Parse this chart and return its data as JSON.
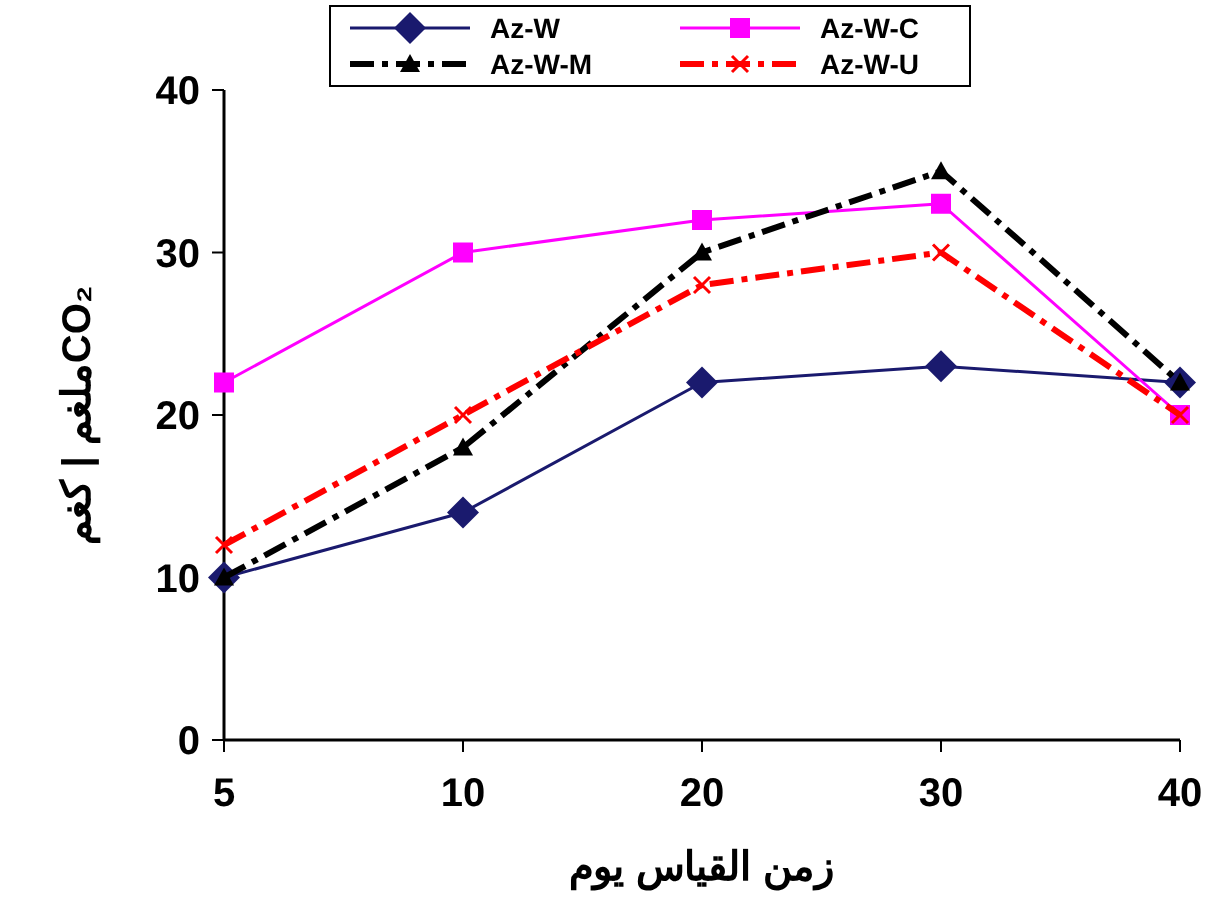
{
  "chart_data": {
    "type": "line",
    "xlabel": "زمن القياس يوم",
    "ylabel": "CO₂ملغم | كغم",
    "categories": [
      "5",
      "10",
      "20",
      "30",
      "40"
    ],
    "ylim": [
      0,
      40
    ],
    "yticks": [
      0,
      10,
      20,
      30,
      40
    ],
    "grid": false,
    "legend": "top",
    "series": [
      {
        "name": "Az-W",
        "color": "#1a1a6e",
        "values": [
          10,
          14,
          22,
          23,
          22
        ],
        "marker": "diamond",
        "line_style": "solid"
      },
      {
        "name": "Az-W-C",
        "color": "#ff00ff",
        "values": [
          22,
          30,
          32,
          33,
          20
        ],
        "marker": "square",
        "line_style": "solid"
      },
      {
        "name": "Az-W-M",
        "color": "#000000",
        "values": [
          10,
          18,
          30,
          35,
          22
        ],
        "marker": "triangle",
        "line_style": "dashed"
      },
      {
        "name": "Az-W-U",
        "color": "#ff0000",
        "values": [
          12,
          20,
          28,
          30,
          20
        ],
        "marker": "cross",
        "line_style": "dashed"
      }
    ]
  }
}
